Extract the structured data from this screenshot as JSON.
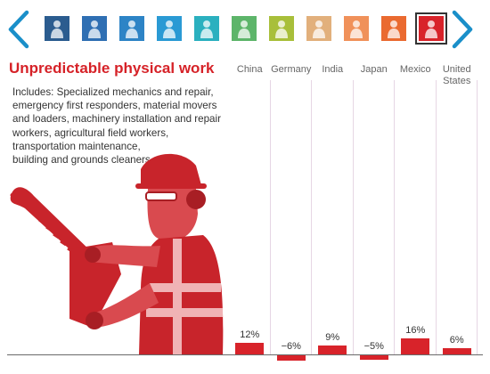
{
  "title": "Unpredictable physical work",
  "includes_lines": [
    "Includes: Specialized mechanics and repair,",
    "emergency first responders, material movers",
    "and loaders, machinery installation and repair",
    "workers, agricultural field workers,",
    "transportation maintenance,",
    "building and grounds cleaners"
  ],
  "nav": {
    "prev_icon": "chevron-left-icon",
    "next_icon": "chevron-right-icon",
    "color": "#1a8fc9"
  },
  "thumbnails": [
    {
      "color": "#2b5c8f"
    },
    {
      "color": "#2f6fb3"
    },
    {
      "color": "#2d84c6"
    },
    {
      "color": "#2a9ad4"
    },
    {
      "color": "#2bb0bf"
    },
    {
      "color": "#5db56a"
    },
    {
      "color": "#a8bf3a"
    },
    {
      "color": "#e2b07c"
    },
    {
      "color": "#f0915a"
    },
    {
      "color": "#ea6a30"
    },
    {
      "color": "#d8232a",
      "selected": true
    }
  ],
  "accent_color": "#d8232a",
  "chart_data": {
    "type": "bar",
    "categories": [
      "China",
      "Germany",
      "India",
      "Japan",
      "Mexico",
      "United States"
    ],
    "category_label_lines": [
      [
        "China"
      ],
      [
        "Germany"
      ],
      [
        "India"
      ],
      [
        "Japan"
      ],
      [
        "Mexico"
      ],
      [
        "United",
        "States"
      ]
    ],
    "values": [
      12,
      -6,
      9,
      -5,
      16,
      6
    ],
    "value_labels": [
      "12%",
      "−6%",
      "9%",
      "−5%",
      "16%",
      "6%"
    ],
    "bar_color": "#d8232a",
    "title": "Unpredictable physical work"
  }
}
